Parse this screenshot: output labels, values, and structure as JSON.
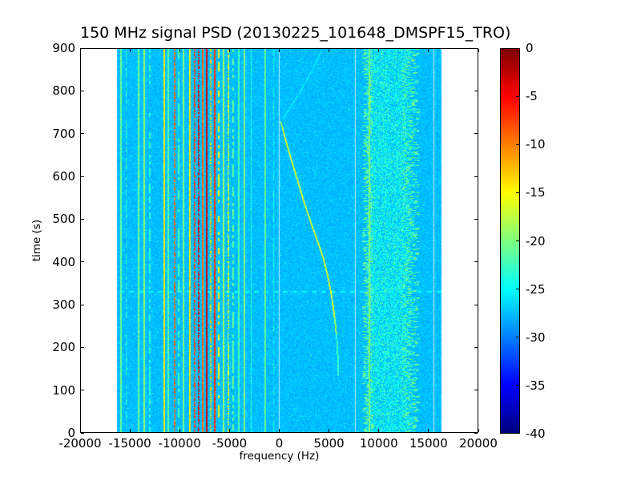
{
  "chart_data": {
    "type": "heatmap",
    "title": "150 MHz signal PSD (20130225_101648_DMSPF15_TRO)",
    "xlabel": "frequency (Hz)",
    "ylabel": "time (s)",
    "xlim": [
      -20000,
      20000
    ],
    "ylim": [
      0,
      900
    ],
    "xticks": [
      -20000,
      -15000,
      -10000,
      -5000,
      0,
      5000,
      10000,
      15000,
      20000
    ],
    "yticks": [
      0,
      100,
      200,
      300,
      400,
      500,
      600,
      700,
      800,
      900
    ],
    "colorbar": {
      "vmin": -40,
      "vmax": 0,
      "ticks": [
        0,
        -5,
        -10,
        -15,
        -20,
        -25,
        -30,
        -35,
        -40
      ],
      "colormap": "jet",
      "position": "right"
    },
    "grid": false,
    "data_freq_range": [
      -16384,
      16384
    ],
    "background_level_db": -27.5,
    "rfi_lines": [
      {
        "f": -15950,
        "w": 140,
        "level": -21,
        "style": "solid"
      },
      {
        "f": -15400,
        "w": 90,
        "level": -23.5,
        "style": "dashed"
      },
      {
        "f": -14180,
        "w": 110,
        "level": -21,
        "style": "solid"
      },
      {
        "f": -13620,
        "w": 140,
        "level": -19.5,
        "style": "solid"
      },
      {
        "f": -13050,
        "w": 90,
        "level": -23,
        "style": "dashed"
      },
      {
        "f": -11600,
        "w": 170,
        "level": -14.5,
        "style": "solid"
      },
      {
        "f": -11190,
        "w": 110,
        "level": -21,
        "style": "solid"
      },
      {
        "f": -10550,
        "w": 140,
        "level": -9,
        "style": "speckled"
      },
      {
        "f": -10140,
        "w": 90,
        "level": -22,
        "style": "dashed"
      },
      {
        "f": -9660,
        "w": 110,
        "level": -20,
        "style": "solid"
      },
      {
        "f": -9010,
        "w": 140,
        "level": -14,
        "style": "solid"
      },
      {
        "f": -8520,
        "w": 140,
        "level": -7.5,
        "style": "speckled"
      },
      {
        "f": -8120,
        "w": 110,
        "level": -4,
        "style": "speckled"
      },
      {
        "f": -7720,
        "w": 110,
        "level": -9,
        "style": "solid"
      },
      {
        "f": -7310,
        "w": 130,
        "level": -3.5,
        "style": "solid"
      },
      {
        "f": -6910,
        "w": 110,
        "level": -13,
        "style": "speckled"
      },
      {
        "f": -6500,
        "w": 120,
        "level": -7,
        "style": "solid"
      },
      {
        "f": -6100,
        "w": 100,
        "level": -15,
        "style": "dashed"
      },
      {
        "f": -5620,
        "w": 110,
        "level": -19,
        "style": "solid"
      },
      {
        "f": -5130,
        "w": 120,
        "level": -16,
        "style": "speckled"
      },
      {
        "f": -4650,
        "w": 100,
        "level": -21,
        "style": "dashed"
      },
      {
        "f": -4080,
        "w": 90,
        "level": -22,
        "style": "solid"
      },
      {
        "f": -3520,
        "w": 110,
        "level": -20,
        "style": "solid"
      },
      {
        "f": -2790,
        "w": 80,
        "level": -23.5,
        "style": "solid"
      },
      {
        "f": -1410,
        "w": 90,
        "level": -21,
        "style": "solid"
      },
      {
        "f": -600,
        "w": 80,
        "level": -24,
        "style": "dashed"
      },
      {
        "f": 9100,
        "w": 110,
        "level": -20.5,
        "style": "solid"
      }
    ],
    "white_lines": [
      {
        "f": 0,
        "w": 90
      },
      {
        "f": 7650,
        "w": 70
      },
      {
        "f": 15560,
        "w": 80
      }
    ],
    "noise_band": {
      "f_start": 8800,
      "f_end": 13400,
      "fill_level": -23.8,
      "edge_level": -20.8
    },
    "doppler_trace": {
      "level": -17,
      "width_hz": 160,
      "points": [
        [
          131,
          5980
        ],
        [
          206,
          5860
        ],
        [
          262,
          5620
        ],
        [
          319,
          5290
        ],
        [
          375,
          4810
        ],
        [
          412,
          4400
        ],
        [
          450,
          3840
        ],
        [
          487,
          3270
        ],
        [
          525,
          2710
        ],
        [
          562,
          2220
        ],
        [
          600,
          1740
        ],
        [
          637,
          1250
        ],
        [
          675,
          770
        ],
        [
          712,
          360
        ],
        [
          731,
          120
        ]
      ]
    },
    "faint_trace": {
      "level": -25.0,
      "width_hz": 110,
      "points": [
        [
          737,
          420
        ],
        [
          800,
          2150
        ],
        [
          860,
          3520
        ],
        [
          895,
          4280
        ]
      ]
    },
    "dashed_horizontal_line_t": 330
  }
}
